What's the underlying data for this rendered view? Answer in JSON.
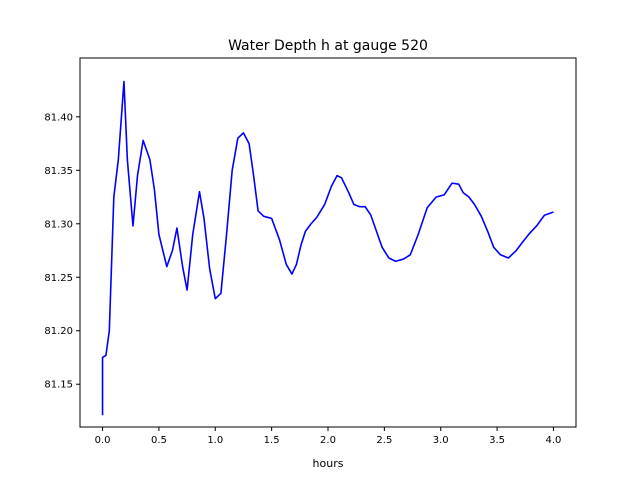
{
  "chart_data": {
    "type": "line",
    "title": "Water Depth h at gauge 520",
    "xlabel": "hours",
    "ylabel": "",
    "xlim": [
      -0.2,
      4.2
    ],
    "ylim": [
      81.11,
      81.455
    ],
    "xticks": [
      0.0,
      0.5,
      1.0,
      1.5,
      2.0,
      2.5,
      3.0,
      3.5,
      4.0
    ],
    "xtick_labels": [
      "0.0",
      "0.5",
      "1.0",
      "1.5",
      "2.0",
      "2.5",
      "3.0",
      "3.5",
      "4.0"
    ],
    "yticks": [
      81.15,
      81.2,
      81.25,
      81.3,
      81.35,
      81.4
    ],
    "ytick_labels": [
      "81.15",
      "81.20",
      "81.25",
      "81.30",
      "81.35",
      "81.40"
    ],
    "grid": false,
    "series": [
      {
        "color": "#0000ff",
        "x": [
          0.0,
          0.0,
          0.03,
          0.06,
          0.1,
          0.14,
          0.19,
          0.22,
          0.27,
          0.31,
          0.36,
          0.42,
          0.46,
          0.5,
          0.57,
          0.62,
          0.66,
          0.71,
          0.75,
          0.8,
          0.86,
          0.9,
          0.95,
          1.0,
          1.05,
          1.1,
          1.15,
          1.2,
          1.25,
          1.3,
          1.34,
          1.38,
          1.43,
          1.5,
          1.57,
          1.63,
          1.68,
          1.72,
          1.76,
          1.8,
          1.85,
          1.9,
          1.97,
          2.03,
          2.08,
          2.12,
          2.18,
          2.23,
          2.28,
          2.33,
          2.38,
          2.43,
          2.48,
          2.54,
          2.6,
          2.67,
          2.73,
          2.8,
          2.88,
          2.96,
          3.03,
          3.1,
          3.16,
          3.2,
          3.25,
          3.3,
          3.36,
          3.42,
          3.47,
          3.53,
          3.6,
          3.67,
          3.72,
          3.78,
          3.85,
          3.92,
          4.0
        ],
        "values": [
          81.121,
          81.175,
          81.177,
          81.2,
          81.325,
          81.36,
          81.433,
          81.36,
          81.298,
          81.345,
          81.378,
          81.36,
          81.332,
          81.29,
          81.26,
          81.275,
          81.296,
          81.26,
          81.238,
          81.29,
          81.33,
          81.305,
          81.258,
          81.23,
          81.235,
          81.29,
          81.35,
          81.38,
          81.385,
          81.375,
          81.345,
          81.312,
          81.307,
          81.305,
          81.285,
          81.262,
          81.253,
          81.262,
          81.28,
          81.293,
          81.3,
          81.306,
          81.318,
          81.335,
          81.345,
          81.343,
          81.33,
          81.318,
          81.316,
          81.316,
          81.308,
          81.293,
          81.278,
          81.268,
          81.265,
          81.267,
          81.271,
          81.29,
          81.315,
          81.325,
          81.327,
          81.338,
          81.337,
          81.329,
          81.325,
          81.318,
          81.307,
          81.292,
          81.278,
          81.271,
          81.268,
          81.275,
          81.282,
          81.29,
          81.298,
          81.308,
          81.311
        ]
      }
    ]
  }
}
